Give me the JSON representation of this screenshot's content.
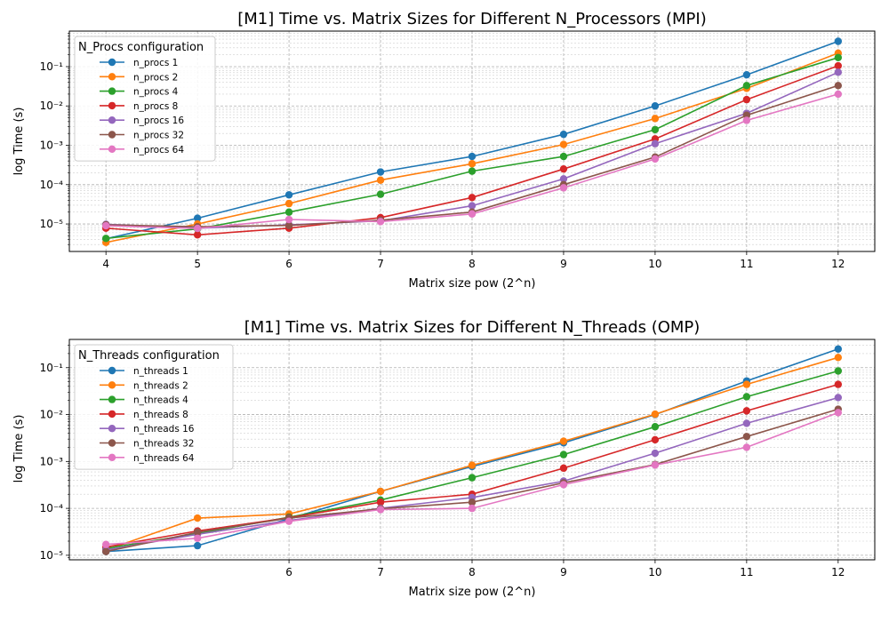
{
  "chart_data": [
    {
      "type": "line",
      "title": "[M1] Time vs. Matrix Sizes for Different N_Processors (MPI)",
      "xlabel": "Matrix size pow (2^n)",
      "ylabel": "log Time (s)",
      "x": [
        4,
        5,
        6,
        7,
        8,
        9,
        10,
        11,
        12
      ],
      "x_ticks": [
        4,
        5,
        6,
        7,
        8,
        9,
        10,
        11,
        12
      ],
      "xlim": [
        3.6,
        12.4
      ],
      "ylim": [
        2e-06,
        0.8
      ],
      "yscale": "log",
      "y_ticks": [
        {
          "v": 1e-05,
          "label": "10⁻⁵"
        },
        {
          "v": 0.0001,
          "label": "10⁻⁴"
        },
        {
          "v": 0.001,
          "label": "10⁻³"
        },
        {
          "v": 0.01,
          "label": "10⁻²"
        },
        {
          "v": 0.1,
          "label": "10⁻¹"
        }
      ],
      "grid": true,
      "legend": {
        "title": "N_Procs configuration",
        "placement": "upper-left"
      },
      "series": [
        {
          "name": "n_procs 1",
          "color": "#1f77b4",
          "values": [
            4.2e-06,
            1.4e-05,
            5.5e-05,
            0.00021,
            0.00052,
            0.0019,
            0.01,
            0.062,
            0.44
          ]
        },
        {
          "name": "n_procs 2",
          "color": "#ff7f0e",
          "values": [
            3.4e-06,
            1e-05,
            3.3e-05,
            0.00013,
            0.00034,
            0.00105,
            0.0048,
            0.028,
            0.22
          ]
        },
        {
          "name": "n_procs 4",
          "color": "#2ca02c",
          "values": [
            4.3e-06,
            7.5e-06,
            2e-05,
            5.7e-05,
            0.00022,
            0.00052,
            0.0025,
            0.033,
            0.17
          ]
        },
        {
          "name": "n_procs 8",
          "color": "#d62728",
          "values": [
            7.8e-06,
            5.3e-06,
            7.8e-06,
            1.45e-05,
            4.7e-05,
            0.00025,
            0.00145,
            0.0145,
            0.105
          ]
        },
        {
          "name": "n_procs 16",
          "color": "#9467bd",
          "values": [
            9.8e-06,
            7.8e-06,
            9.5e-06,
            1.2e-05,
            2.9e-05,
            0.00014,
            0.0011,
            0.0065,
            0.072
          ]
        },
        {
          "name": "n_procs 32",
          "color": "#8c564b",
          "values": [
            9.5e-06,
            8.5e-06,
            9.2e-06,
            1.25e-05,
            2e-05,
            0.0001,
            0.0005,
            0.0058,
            0.033
          ]
        },
        {
          "name": "n_procs 64",
          "color": "#e377c2",
          "values": [
            9e-06,
            7.7e-06,
            1.3e-05,
            1.15e-05,
            1.8e-05,
            8.3e-05,
            0.00045,
            0.0043,
            0.02
          ]
        }
      ]
    },
    {
      "type": "line",
      "title": "[M1] Time vs. Matrix Sizes for Different N_Threads (OMP)",
      "xlabel": "Matrix size pow (2^n)",
      "ylabel": "log Time (s)",
      "x": [
        4,
        5,
        6,
        7,
        8,
        9,
        10,
        11,
        12
      ],
      "x_ticks": [
        6,
        7,
        8,
        9,
        10,
        11,
        12
      ],
      "xlim": [
        3.6,
        12.4
      ],
      "ylim": [
        8e-06,
        0.4
      ],
      "yscale": "log",
      "y_ticks": [
        {
          "v": 1e-05,
          "label": "10⁻⁵"
        },
        {
          "v": 0.0001,
          "label": "10⁻⁴"
        },
        {
          "v": 0.001,
          "label": "10⁻³"
        },
        {
          "v": 0.01,
          "label": "10⁻²"
        },
        {
          "v": 0.1,
          "label": "10⁻¹"
        }
      ],
      "grid": true,
      "legend": {
        "title": "N_Threads configuration",
        "placement": "upper-left"
      },
      "series": [
        {
          "name": "n_threads 1",
          "color": "#1f77b4",
          "values": [
            1.2e-05,
            1.6e-05,
            6e-05,
            0.00023,
            0.00078,
            0.0025,
            0.01,
            0.052,
            0.25
          ]
        },
        {
          "name": "n_threads 2",
          "color": "#ff7f0e",
          "values": [
            1.3e-05,
            6.2e-05,
            7.6e-05,
            0.00023,
            0.00083,
            0.0027,
            0.0102,
            0.044,
            0.165
          ]
        },
        {
          "name": "n_threads 4",
          "color": "#2ca02c",
          "values": [
            1.4e-05,
            2.9e-05,
            6.5e-05,
            0.00015,
            0.00045,
            0.0014,
            0.0055,
            0.024,
            0.085
          ]
        },
        {
          "name": "n_threads 8",
          "color": "#d62728",
          "values": [
            1.5e-05,
            3.3e-05,
            6.3e-05,
            0.000135,
            0.0002,
            0.00072,
            0.0029,
            0.012,
            0.044
          ]
        },
        {
          "name": "n_threads 16",
          "color": "#9467bd",
          "values": [
            1.3e-05,
            2.8e-05,
            5.5e-05,
            0.0001,
            0.00017,
            0.00038,
            0.0015,
            0.0065,
            0.023
          ]
        },
        {
          "name": "n_threads 32",
          "color": "#8c564b",
          "values": [
            1.2e-05,
            3.1e-05,
            6.2e-05,
            9.8e-05,
            0.000135,
            0.00035,
            0.00086,
            0.0034,
            0.013
          ]
        },
        {
          "name": "n_threads 64",
          "color": "#e377c2",
          "values": [
            1.7e-05,
            2.3e-05,
            5.3e-05,
            9.4e-05,
            0.0001,
            0.00032,
            0.00084,
            0.002,
            0.011
          ]
        }
      ]
    }
  ]
}
